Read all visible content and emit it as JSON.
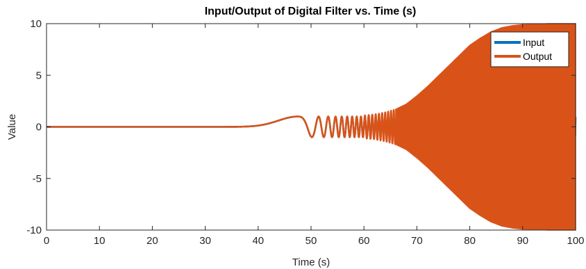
{
  "chart_data": {
    "type": "line",
    "title": "Input/Output of Digital Filter vs. Time (s)",
    "xlabel": "Time (s)",
    "ylabel": "Value",
    "xlim": [
      0,
      100
    ],
    "ylim": [
      -10,
      10
    ],
    "xticks": [
      0,
      10,
      20,
      30,
      40,
      50,
      60,
      70,
      80,
      90,
      100
    ],
    "yticks": [
      -10,
      -5,
      0,
      5,
      10
    ],
    "xtick_labels": [
      "0",
      "10",
      "20",
      "30",
      "40",
      "50",
      "60",
      "70",
      "80",
      "90",
      "100"
    ],
    "ytick_labels": [
      "-10",
      "-5",
      "0",
      "5",
      "10"
    ],
    "grid": false,
    "legend_position": "top-right",
    "series": [
      {
        "name": "Input",
        "color": "#0072BD",
        "description_points": {
          "x": [
            0,
            20,
            30,
            40,
            45,
            47.5,
            50,
            53.5,
            56.5,
            60,
            65,
            70,
            75,
            80,
            85,
            90,
            100
          ],
          "y": [
            0.0,
            0.02,
            0.08,
            0.35,
            0.8,
            1.0,
            0.5,
            -1.0,
            1.0,
            -1.0,
            1.0,
            -1.0,
            1.0,
            -1.0,
            1.0,
            -1.0,
            1.0
          ]
        }
      },
      {
        "name": "Output",
        "color": "#D95319",
        "description_points": {
          "x": [
            0,
            20,
            30,
            40,
            45,
            47.5,
            50,
            53.5,
            56.5,
            60,
            65,
            70,
            75,
            80,
            85,
            90,
            100
          ],
          "y": [
            0.0,
            0.02,
            0.08,
            0.35,
            0.8,
            1.0,
            0.5,
            -1.0,
            1.05,
            -1.1,
            1.6,
            3.0,
            5.8,
            8.5,
            9.6,
            9.9,
            10.0
          ]
        },
        "envelope_x": [
          60,
          62,
          64,
          66,
          68,
          70,
          72,
          74,
          76,
          78,
          80,
          82,
          84,
          86,
          88,
          90,
          95,
          100
        ],
        "envelope_amplitude": [
          1.1,
          1.2,
          1.4,
          1.7,
          2.2,
          3.0,
          3.9,
          4.9,
          5.9,
          6.9,
          7.9,
          8.6,
          9.2,
          9.6,
          9.8,
          9.9,
          10.0,
          10.0
        ]
      }
    ]
  }
}
